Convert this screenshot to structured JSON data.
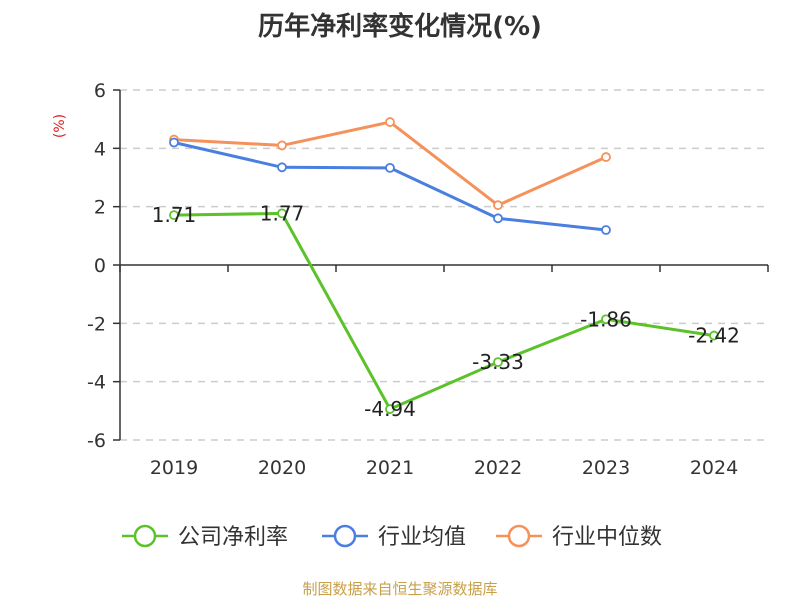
{
  "title": "历年净利率变化情况(%)",
  "source_note": "制图数据来自恒生聚源数据库",
  "chart_data": {
    "type": "line",
    "title": "历年净利率变化情况(%)",
    "xlabel": "",
    "ylabel": "(%)",
    "categories": [
      "2019",
      "2020",
      "2021",
      "2022",
      "2023",
      "2024"
    ],
    "ylim": [
      -6,
      6
    ],
    "yticks": [
      -6,
      -4,
      -2,
      0,
      2,
      4,
      6
    ],
    "grid": true,
    "legend_position": "bottom",
    "series": [
      {
        "name": "公司净利率",
        "color": "#5cc22a",
        "show_labels": true,
        "values": [
          1.71,
          1.77,
          -4.94,
          -3.33,
          -1.86,
          -2.42
        ],
        "labels": [
          "1.71",
          "1.77",
          "-4.94",
          "-3.33",
          "-1.86",
          "-2.42"
        ]
      },
      {
        "name": "行业均值",
        "color": "#4a7fe0",
        "show_labels": false,
        "values": [
          4.2,
          3.35,
          3.33,
          1.6,
          1.2,
          null
        ]
      },
      {
        "name": "行业中位数",
        "color": "#f5915a",
        "show_labels": false,
        "values": [
          4.3,
          4.1,
          4.9,
          2.05,
          3.7,
          null
        ]
      }
    ]
  }
}
